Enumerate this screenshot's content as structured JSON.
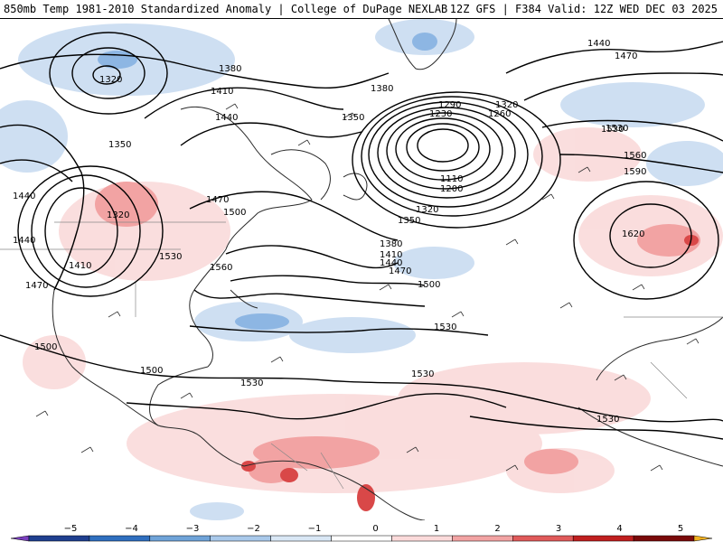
{
  "header": {
    "title_left": "850mb Temp 1981-2010 Standardized Anomaly | College of DuPage NEXLAB",
    "title_right": "12Z GFS | F384 Valid: 12Z WED DEC 03 2025"
  },
  "colorbar": {
    "ticks": [
      "−5",
      "−4",
      "−3",
      "−2",
      "−1",
      "0",
      "1",
      "2",
      "3",
      "4",
      "5"
    ],
    "colors": [
      "#7a3fbf",
      "#1f3f8f",
      "#2f6fbf",
      "#6fa3d8",
      "#a9c9ea",
      "#d9e7f5",
      "#ffffff",
      "#fbdada",
      "#f2a3a3",
      "#e05a5a",
      "#c01f1f",
      "#7a0a0a",
      "#f0b020"
    ]
  },
  "contours": {
    "labels": [
      "1320",
      "1380",
      "1410",
      "1440",
      "1350",
      "1440",
      "1320",
      "1440",
      "1410",
      "1470",
      "1470",
      "1500",
      "1530",
      "1560",
      "1380",
      "1350",
      "1290",
      "1230",
      "1320",
      "1260",
      "1110",
      "1200",
      "1320",
      "1350",
      "1380",
      "1410",
      "1440",
      "1470",
      "1500",
      "1530",
      "1530",
      "1440",
      "1470",
      "1530",
      "1560",
      "1590",
      "1620",
      "1500",
      "1500",
      "1530",
      "1530",
      "1530"
    ]
  }
}
